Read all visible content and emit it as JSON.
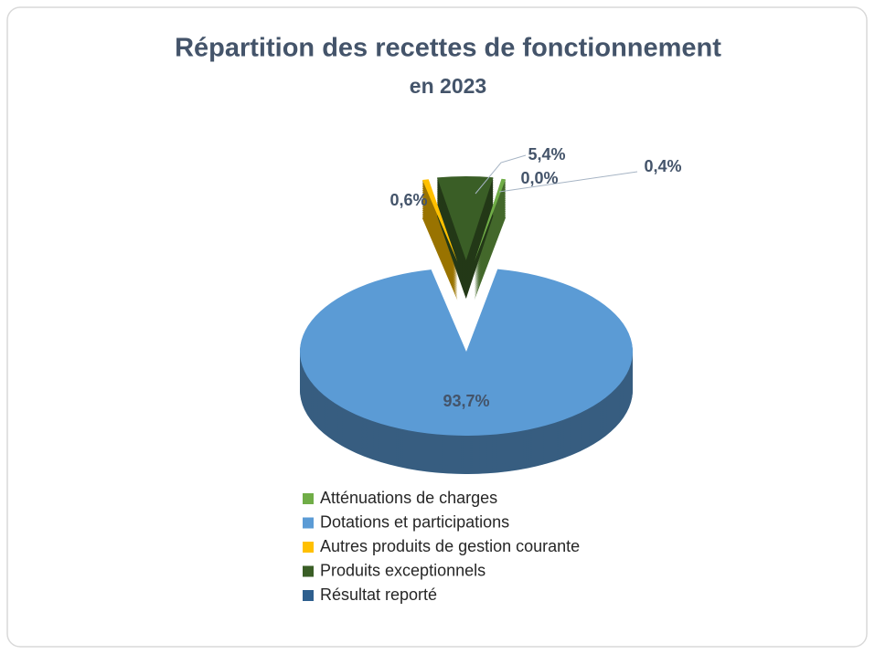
{
  "chart_data": {
    "type": "pie",
    "title": "Répartition des recettes de fonctionnement",
    "subtitle": "en 2023",
    "categories": [
      "Atténuations de charges",
      "Dotations et participations",
      "Autres produits de gestion courante",
      "Produits exceptionnels",
      "Résultat reporté"
    ],
    "values": [
      0.4,
      93.7,
      0.6,
      5.4,
      0.0
    ],
    "value_labels": [
      "0,4%",
      "93,7%",
      "0,6%",
      "5,4%",
      "0,0%"
    ],
    "colors": [
      "#70ad47",
      "#5b9bd5",
      "#ffc000",
      "#3a5e26",
      "#2e5f8e"
    ]
  }
}
